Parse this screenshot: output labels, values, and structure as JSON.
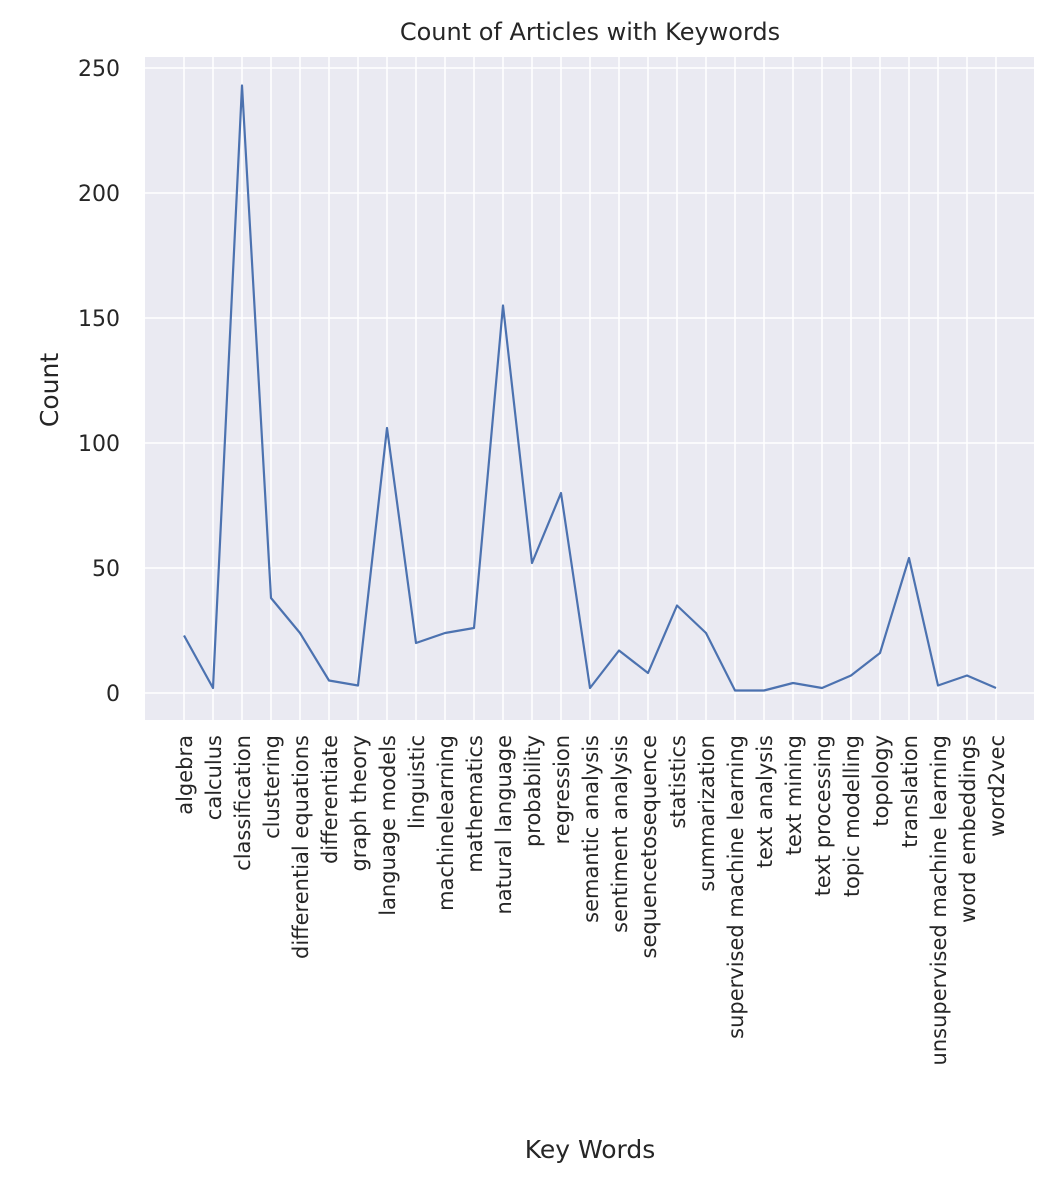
{
  "chart_data": {
    "type": "line",
    "title": "Count of Articles with Keywords",
    "xlabel": "Key Words",
    "ylabel": "Count",
    "ylim": [
      -10,
      255
    ],
    "yticks": [
      0,
      50,
      100,
      150,
      200,
      250
    ],
    "grid": true,
    "line_color": "#4c72b0",
    "background_color": "#eaeaf2",
    "categories": [
      "algebra",
      "calculus",
      "classification",
      "clustering",
      "differential equations",
      "differentiate",
      "graph theory",
      "language models",
      "linguistic",
      "machinelearning",
      "mathematics",
      "natural language",
      "probability",
      "regression",
      "semantic analysis",
      "sentiment analysis",
      "sequencetosequence",
      "statistics",
      "summarization",
      "supervised machine learning",
      "text analysis",
      "text mining",
      "text processing",
      "topic modelling",
      "topology",
      "translation",
      "unsupervised machine learning",
      "word embeddings",
      "word2vec"
    ],
    "values": [
      23,
      2,
      243,
      38,
      24,
      5,
      3,
      106,
      20,
      24,
      26,
      155,
      52,
      80,
      2,
      17,
      8,
      35,
      24,
      1,
      1,
      4,
      2,
      7,
      16,
      54,
      3,
      7,
      2
    ]
  }
}
